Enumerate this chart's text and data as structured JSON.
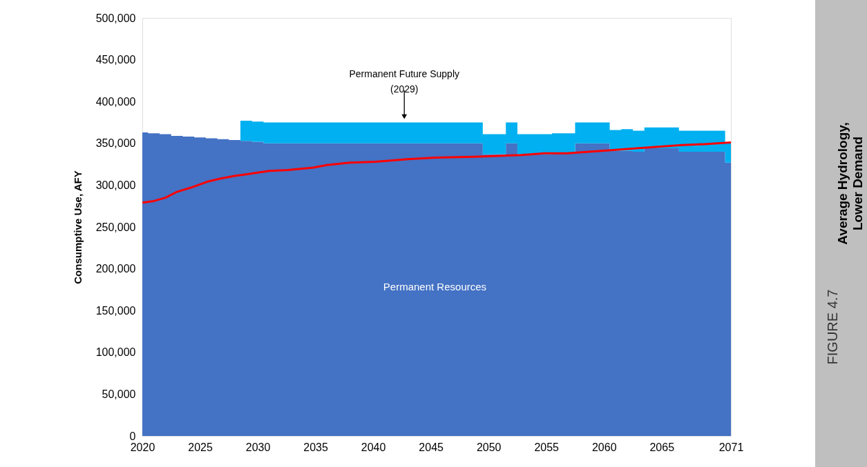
{
  "chart_data": {
    "type": "area",
    "title": "Average Hydrology,\nLower Demand",
    "subtitle": "FIGURE 4.7",
    "ylabel": "Consumptive Use, AFY",
    "x": [
      2020,
      2021,
      2022,
      2023,
      2024,
      2025,
      2026,
      2027,
      2028,
      2029,
      2030,
      2031,
      2032,
      2033,
      2034,
      2035,
      2036,
      2037,
      2038,
      2039,
      2040,
      2041,
      2042,
      2043,
      2044,
      2045,
      2046,
      2047,
      2048,
      2049,
      2050,
      2051,
      2052,
      2053,
      2054,
      2055,
      2056,
      2057,
      2058,
      2059,
      2060,
      2061,
      2062,
      2063,
      2064,
      2065,
      2066,
      2067,
      2068,
      2069,
      2070,
      2071
    ],
    "stacked": true,
    "series": [
      {
        "color": "#4472c4",
        "values": [
          363000,
          362000,
          361000,
          359000,
          358000,
          357000,
          356000,
          355000,
          354000,
          353000,
          352000,
          350000,
          350000,
          350000,
          350000,
          350000,
          350000,
          350000,
          350000,
          350000,
          350000,
          350000,
          350000,
          350000,
          350000,
          350000,
          350000,
          350000,
          350000,
          350000,
          337000,
          337000,
          350000,
          337000,
          337000,
          337000,
          338000,
          338000,
          350000,
          350000,
          350000,
          341000,
          341000,
          340000,
          344000,
          344000,
          344000,
          340000,
          340000,
          340000,
          340000,
          327000
        ]
      },
      {
        "color": "#00b0f0",
        "values": [
          0,
          0,
          0,
          0,
          0,
          0,
          0,
          0,
          0,
          24000,
          24000,
          25000,
          25000,
          25000,
          25000,
          25000,
          25000,
          25000,
          25000,
          25000,
          25000,
          25000,
          25000,
          25000,
          25000,
          25000,
          25000,
          25000,
          25000,
          25000,
          24000,
          24000,
          25000,
          24000,
          24000,
          24000,
          24000,
          24000,
          25000,
          25000,
          25000,
          25000,
          26000,
          25000,
          25000,
          25000,
          25000,
          25000,
          25000,
          25000,
          25000,
          24000
        ]
      },
      {
        "type": "line",
        "color": "#ff0000",
        "x": [
          2020,
          2021,
          2022,
          2023,
          2024.2,
          2025.6,
          2026.8,
          2028,
          2029,
          2030,
          2031,
          2032.6,
          2034.8,
          2036,
          2038,
          2040.2,
          2043,
          2045.4,
          2048.8,
          2050.8,
          2052.8,
          2054.8,
          2056.8,
          2058.7,
          2060.8,
          2062.8,
          2064.7,
          2066.8,
          2068.7,
          2071
        ],
        "values": [
          279000,
          281000,
          285000,
          292000,
          297000,
          304000,
          308000,
          311000,
          313000,
          315000,
          317000,
          318000,
          321000,
          324000,
          327000,
          328000,
          331000,
          333000,
          334000,
          335000,
          336000,
          338000,
          338000,
          340000,
          342000,
          344000,
          346000,
          348000,
          349000,
          351000
        ]
      }
    ],
    "xlim": [
      2020,
      2071
    ],
    "xticks": [
      2020,
      2025,
      2030,
      2035,
      2040,
      2045,
      2050,
      2055,
      2060,
      2065,
      2071
    ],
    "ylim": [
      0,
      500000
    ],
    "yticks": [
      0,
      {
        "value": 50000,
        "label": "50,000"
      },
      {
        "value": 100000,
        "label": "100,000"
      },
      {
        "value": 150000,
        "label": "150,000"
      },
      {
        "value": 200000,
        "label": "200,000"
      },
      {
        "value": 250000,
        "label": "250,000"
      },
      {
        "value": 300000,
        "label": "300,000"
      },
      {
        "value": 350000,
        "label": "350,000"
      },
      {
        "value": 400000,
        "label": "400,000"
      },
      {
        "value": 450000,
        "label": "450,000"
      },
      {
        "value": 500000,
        "label": "500,000"
      }
    ],
    "grid": false,
    "annotations": [
      {
        "text": "Permanent Future Supply\n(2029)",
        "x": 2042.7,
        "y": 377000
      },
      "Permanent Resources"
    ]
  }
}
